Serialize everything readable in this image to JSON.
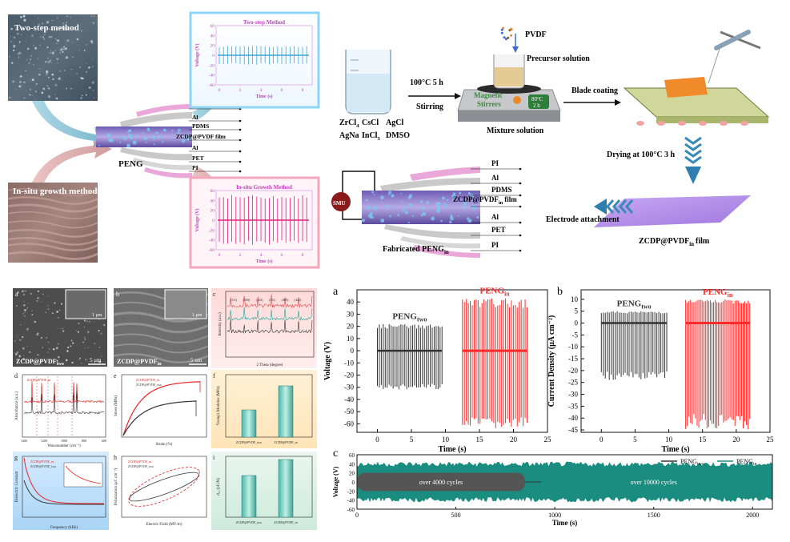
{
  "schematic": {
    "two_step_label": "Two-step method",
    "insitu_label": "In-situ growth method",
    "peng_label": "PENG",
    "inset_top_title": "Two-step Method",
    "inset_bottom_title": "In-situ Growth Method",
    "inset_ylabel": "Voltage (V)",
    "inset_xlabel": "Time (s)",
    "inset_yticks": [
      "60",
      "40",
      "20",
      "0",
      "-20",
      "-40",
      "-60"
    ],
    "inset_xticks": [
      "0",
      "2",
      "4",
      "6",
      "8"
    ],
    "layers_left": [
      "PI",
      "Al",
      "PDMS",
      "ZCDP@PVDF film",
      "Al",
      "PET",
      "PI"
    ],
    "layers_right": [
      "PI",
      "Al",
      "PDMS",
      "ZCDP@PVDF",
      "film",
      "Al",
      "PET",
      "PI"
    ],
    "layers_right_sub": "in",
    "chem_row1": [
      "ZrCl",
      "CsCl",
      "AgCl"
    ],
    "chem_row1_sub": "4",
    "chem_row2": [
      "AgNa",
      "InCl",
      "DMSO"
    ],
    "chem_row2_sub": "3",
    "cond1": "100°C 5 h",
    "stirring": "Stirring",
    "pvdf": "PVDF",
    "precursor": "Precursor solution",
    "stirrer_label1": "Magnetic",
    "stirrer_label2": "Stirrers",
    "stirrer_temp": "80°C",
    "stirrer_time": "2 h",
    "mixture": "Mixture solution",
    "blade": "Blade coating",
    "drying": "Drying at 100°C 3 h",
    "film_label": "ZCDP@PVDF",
    "film_sub": "in",
    "film_suffix": "film",
    "electrode": "Electrode attachment",
    "smu": "SMU",
    "fabricated": "Fabricated PENG",
    "fabricated_sub": "in"
  },
  "sem": {
    "a_label": "ZCDP@PVDF",
    "a_sub": "two",
    "a_scale": "5 μm",
    "a_inset_scale": "1 μm",
    "b_label": "ZCDP@PVDF",
    "b_sub": "in",
    "b_scale": "5 um",
    "b_inset_scale": "1 μm"
  },
  "panel_letters": {
    "a": "a",
    "b": "b",
    "c": "c",
    "d": "d",
    "e": "e",
    "f": "f",
    "g": "g",
    "h": "h",
    "i": "i"
  },
  "small_panels": {
    "c_xlabel": "2 Theta (degree)",
    "c_ylabel": "Intensity (a.u.)",
    "c_peaks": [
      "(111)",
      "(200)",
      "(220)",
      "(311)",
      "(400)",
      "(422)"
    ],
    "d_xlabel": "Wavenumber (cm⁻¹)",
    "d_ylabel": "Absorbance (a.u.)",
    "d_xticks": [
      "1400",
      "1300",
      "1200",
      "1100",
      "1000",
      "900",
      "800",
      "700",
      "600"
    ],
    "d_legend": [
      "ZCDP@PVDF_in",
      "ZCDP@PVDF_two"
    ],
    "e_xlabel": "Strain (%)",
    "e_ylabel": "Stress (MPa)",
    "e_legend": [
      "ZCDP@PVDF_in",
      "ZCDP@PVDF_two"
    ],
    "f_ylabel": "Young's Modulus (MPa)",
    "f_cats": [
      "ZCDP@PVDF_two",
      "ZCDP@PVDF_in"
    ],
    "g_xlabel": "Frequency (kHz)",
    "g_ylabel": "Dielectric Constant",
    "g_legend": [
      "ZCDP@PVDF_in",
      "ZCDP@PVDF_two"
    ],
    "h_xlabel": "Electric Field (MV/m)",
    "h_ylabel": "Polarization (μC cm⁻²)",
    "h_legend": [
      "ZCDP@PVDF_in",
      "ZCDP@PVDF_two"
    ],
    "i_ylabel": "d₃₃ (pC/N)",
    "i_cats": [
      "ZCDP@PVDF_two",
      "ZCDP@PVDF_in"
    ]
  },
  "chart_data": [
    {
      "id": "cd1",
      "type": "line",
      "xlabel": "Time (s)",
      "ylabel": "Voltage (V)",
      "xlim": [
        -3,
        25
      ],
      "ylim": [
        -67,
        50
      ],
      "xticks": [
        0,
        5,
        10,
        15,
        20,
        25
      ],
      "yticks": [
        40,
        30,
        20,
        10,
        0,
        -10,
        -20,
        -30,
        -40,
        -50,
        -60
      ],
      "series": [
        {
          "name": "PENG",
          "sub": "two",
          "color": "#333333",
          "x_range": [
            0,
            9.5
          ],
          "peak_max": 22,
          "peak_min": -32,
          "pulses": 34
        },
        {
          "name": "PENG",
          "sub": "in",
          "color": "#ff2a2a",
          "x_range": [
            12.5,
            22
          ],
          "peak_max": 43,
          "peak_min": -64,
          "pulses": 34
        }
      ]
    },
    {
      "id": "cd2",
      "type": "line",
      "xlabel": "Time (s)",
      "ylabel": "Current Density (μA cm⁻²)",
      "xlim": [
        -3,
        25
      ],
      "ylim": [
        -46,
        14
      ],
      "xticks": [
        0,
        5,
        10,
        15,
        20,
        25
      ],
      "yticks": [
        10,
        5,
        0,
        -5,
        -10,
        -15,
        -20,
        -25,
        -30,
        -35,
        -40,
        -45
      ],
      "series": [
        {
          "name": "PENG",
          "sub": "two",
          "color": "#333333",
          "x_range": [
            0,
            9.7
          ],
          "peak_max": 5,
          "peak_min": -24,
          "pulses": 34
        },
        {
          "name": "PENG",
          "sub": "in",
          "color": "#ff2a2a",
          "x_range": [
            12.5,
            22
          ],
          "peak_max": 10,
          "peak_min": -45,
          "pulses": 40
        }
      ]
    },
    {
      "id": "cd3",
      "type": "line",
      "xlabel": "Time (s)",
      "ylabel": "Voltage (V)",
      "xlim": [
        0,
        2100
      ],
      "ylim": [
        -60,
        60
      ],
      "xticks": [
        0,
        500,
        1000,
        1500,
        2000
      ],
      "yticks": [
        60,
        40,
        20,
        0,
        -20,
        -40,
        -60
      ],
      "series": [
        {
          "name": "PENG",
          "sub": "two",
          "color": "#555555",
          "x_range": [
            0,
            850
          ],
          "amp": 20
        },
        {
          "name": "PENG",
          "sub": "in",
          "color": "#1a8c80",
          "x_range": [
            0,
            2100
          ],
          "amp": 45
        }
      ],
      "annotations": [
        "over 4000 cycles",
        "over 10000 cycles"
      ]
    }
  ]
}
